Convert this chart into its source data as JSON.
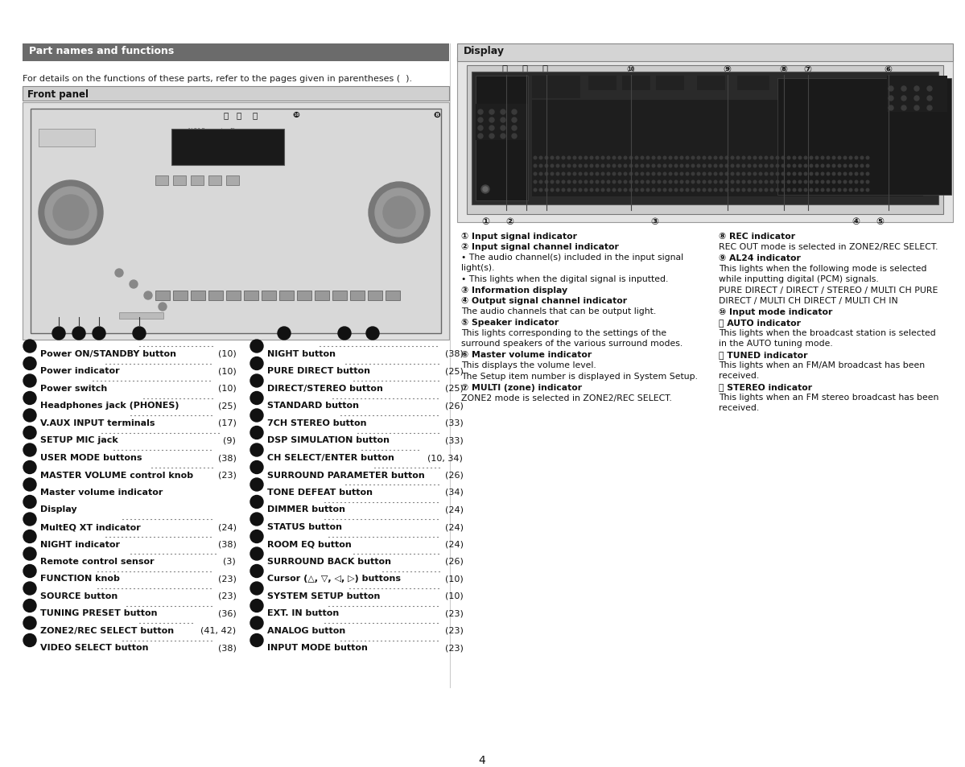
{
  "page_bg": "#ffffff",
  "left_header_bg": "#6b6b6b",
  "left_header_text": "Part names and functions",
  "left_header_text_color": "#ffffff",
  "right_header_bg": "#d4d4d4",
  "right_header_text": "Display",
  "right_header_text_color": "#2a2a2a",
  "subtitle_text": "For details on the functions of these parts, refer to the pages given in parentheses (  ).",
  "front_panel_header_bg": "#d0d0d0",
  "front_panel_header_text": "Front panel",
  "left_items": [
    [
      "❶ Power ON/STANDBY button",
      "(10)"
    ],
    [
      "❷ Power indicator",
      "(10)"
    ],
    [
      "❸ Power switch",
      "(10)"
    ],
    [
      "❹ Headphones jack (PHONES)",
      "(25)"
    ],
    [
      "❺ V.AUX INPUT terminals",
      "(17)"
    ],
    [
      "❻ SETUP MIC jack",
      "(9)"
    ],
    [
      "❼ USER MODE buttons",
      "(38)"
    ],
    [
      "❽ MASTER VOLUME control knob",
      "(23)"
    ],
    [
      "❾ Master volume indicator",
      ""
    ],
    [
      "❿ Display",
      ""
    ],
    [
      "⓵ MultEQ XT indicator",
      "(24)"
    ],
    [
      "⓶ NIGHT indicator",
      "(38)"
    ],
    [
      "⓷ Remote control sensor",
      "(3)"
    ],
    [
      "⓸ FUNCTION knob",
      "(23)"
    ],
    [
      "⓹ SOURCE button",
      "(23)"
    ],
    [
      "⓺ TUNING PRESET button",
      "(36)"
    ],
    [
      "⓻ ZONE2/REC SELECT button",
      "(41, 42)"
    ],
    [
      "⓼ VIDEO SELECT button",
      "(38)"
    ]
  ],
  "right_items": [
    [
      "⓽ NIGHT button",
      "(38)"
    ],
    [
      "⓾ PURE DIRECT button",
      "(25)"
    ],
    [
      "⓿ DIRECT/STEREO button",
      "(25)"
    ],
    [
      "⒀ STANDARD button",
      "(26)"
    ],
    [
      "⒁ 7CH STEREO button",
      "(33)"
    ],
    [
      "⒂ DSP SIMULATION button",
      "(33)"
    ],
    [
      "⒃ CH SELECT/ENTER button",
      "(10, 34)"
    ],
    [
      "⒄ SURROUND PARAMETER button",
      "(26)"
    ],
    [
      "⒅ TONE DEFEAT button",
      "(34)"
    ],
    [
      "⒆ DIMMER button",
      "(24)"
    ],
    [
      "⒇ STATUS button",
      "(24)"
    ],
    [
      "⒈ ROOM EQ button",
      "(24)"
    ],
    [
      "⒉ SURROUND BACK button",
      "(26)"
    ],
    [
      "⒊ Cursor (△, ▽, ◁, ▷) buttons",
      "(10)"
    ],
    [
      "⒋ SYSTEM SETUP button",
      "(10)"
    ],
    [
      "⒌ EXT. IN button",
      "(23)"
    ],
    [
      "⒍ ANALOG button",
      "(23)"
    ],
    [
      "⒎ INPUT MODE button",
      "(23)"
    ]
  ],
  "display_desc_left": [
    [
      "① Input signal indicator",
      true
    ],
    [
      "② Input signal channel indicator",
      true
    ],
    [
      "• The audio channel(s) included in the input signal light(s).",
      false
    ],
    [
      "• This lights when the digital signal is inputted.",
      false
    ],
    [
      "③ Information display",
      true
    ],
    [
      "④ Output signal channel indicator",
      true
    ],
    [
      "The audio channels that can be output light.",
      false
    ],
    [
      "⑤ Speaker indicator",
      true
    ],
    [
      "This lights corresponding to the settings of the surround speakers of the various surround modes.",
      false
    ],
    [
      "⑥ Master volume indicator",
      true
    ],
    [
      "This displays the volume level. The Setup item number is displayed in System Setup.",
      false
    ],
    [
      "⑦ MULTI (zone) indicator",
      true
    ],
    [
      "ZONE2 mode is selected in ZONE2/REC SELECT.",
      false
    ]
  ],
  "display_desc_right": [
    [
      "⑧ REC indicator",
      true
    ],
    [
      "REC OUT mode is selected in ZONE2/REC SELECT.",
      false
    ],
    [
      "⑨ AL24 indicator",
      true
    ],
    [
      "This lights when the following mode is selected while inputting digital (PCM) signals. PURE DIRECT / DIRECT / STEREO / MULTI CH PURE DIRECT / MULTI CH DIRECT / MULTI CH IN",
      false
    ],
    [
      "⑩ Input mode indicator",
      true
    ],
    [
      "⑪ AUTO indicator",
      true
    ],
    [
      "This lights when the broadcast station is selected in the AUTO tuning mode.",
      false
    ],
    [
      "⑫ TUNED indicator",
      true
    ],
    [
      "This lights when an FM/AM broadcast has been received.",
      false
    ],
    [
      "⑬ STEREO indicator",
      true
    ],
    [
      "This lights when an FM stereo broadcast has been received.",
      false
    ]
  ],
  "page_number": "4"
}
